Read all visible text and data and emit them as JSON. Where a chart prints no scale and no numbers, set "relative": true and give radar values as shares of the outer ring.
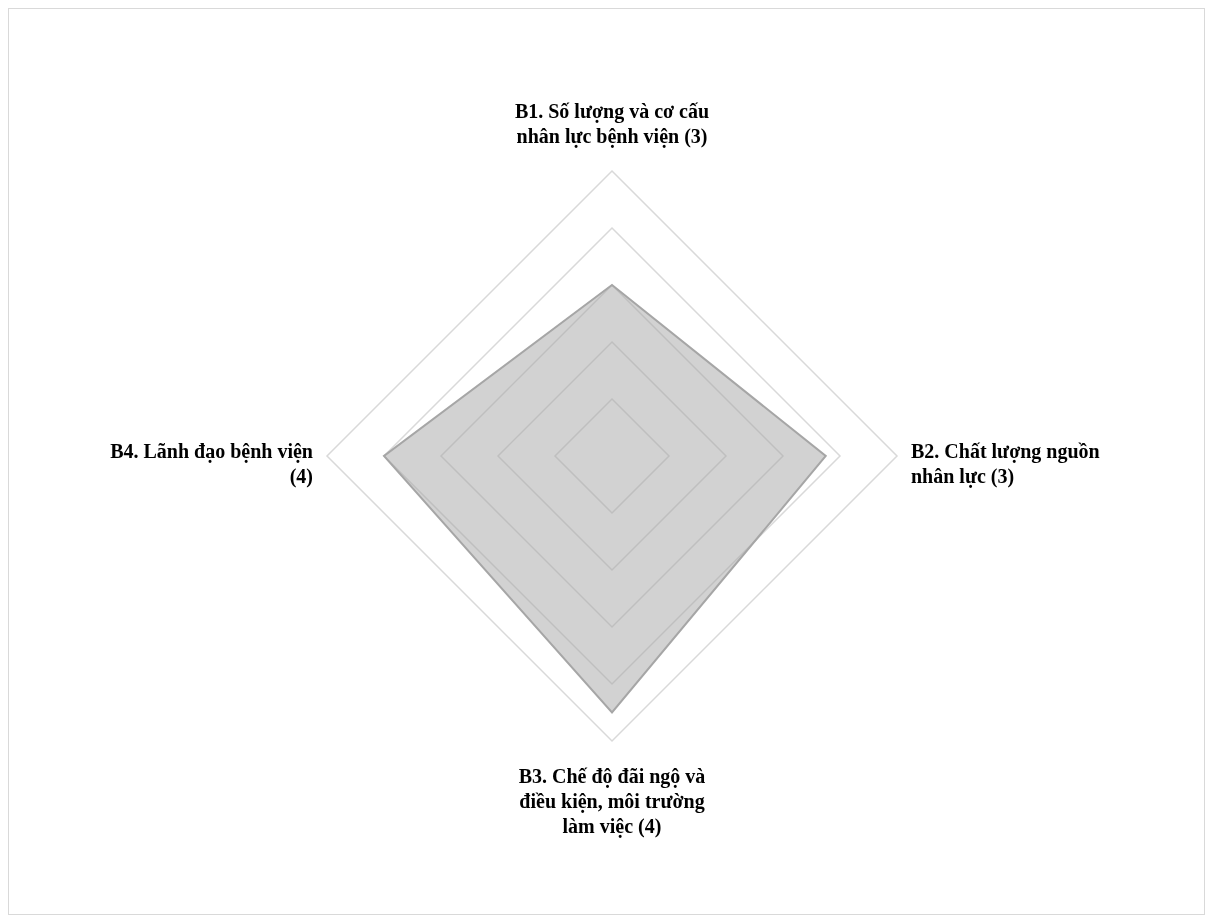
{
  "chart_data": {
    "type": "radar",
    "relative": true,
    "grid": true,
    "categories": [
      "B1. Số lượng và cơ cấu nhân lực bệnh viện (3)",
      "B2. Chất lượng nguồn nhân lực (3)",
      "B3. Chế độ đãi ngộ và điều kiện, môi trường làm việc (4)",
      "B4. Lãnh đạo bệnh viện (4)"
    ],
    "series": [
      {
        "color": "#a6a6a6",
        "values": [
          0.6,
          0.75,
          0.9,
          0.8
        ]
      }
    ]
  }
}
